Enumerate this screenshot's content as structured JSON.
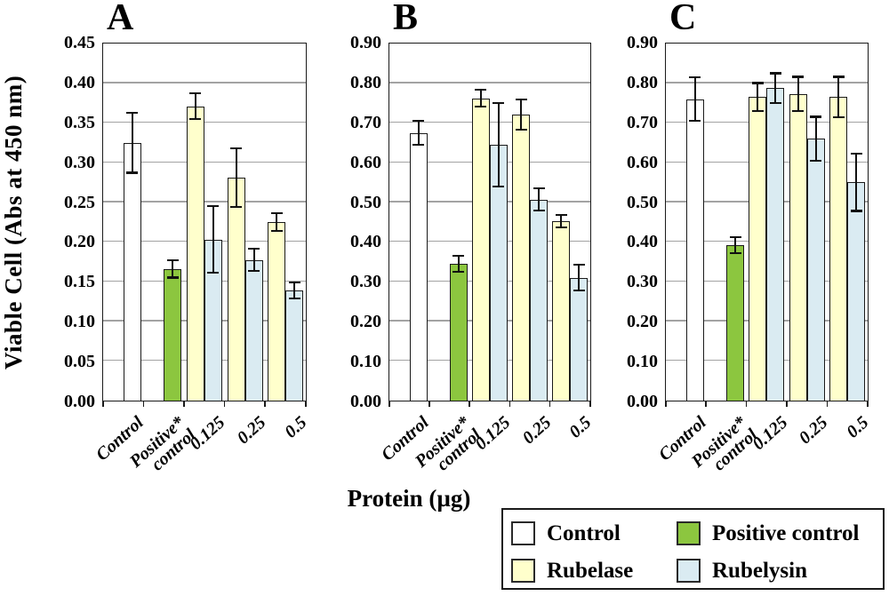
{
  "figure": {
    "ylabel": "Viable Cell (Abs at 450 nm)",
    "xlabel": "Protein (µg)"
  },
  "colors": {
    "control": "#FFFFFF",
    "positive": "#8CC63F",
    "rubelase": "#FFFFCC",
    "rubelysin": "#DAEBF2",
    "bar_border": "#1A1A1A",
    "gridline": "#A3A3A3"
  },
  "legend": {
    "items": [
      {
        "label": "Control",
        "color_key": "control"
      },
      {
        "label": "Positive control",
        "color_key": "positive"
      },
      {
        "label": "Rubelase",
        "color_key": "rubelase"
      },
      {
        "label": "Rubelysin",
        "color_key": "rubelysin"
      }
    ]
  },
  "chart_data": {
    "type": "bar",
    "title": "",
    "xlabel": "Protein (µg)",
    "ylabel": "Viable Cell (Abs at 450 nm)",
    "categories": [
      "Control",
      "Positive*\ncontrol",
      "0.125",
      "0.25",
      "0.5"
    ],
    "series_names": [
      "Control",
      "Positive control",
      "Rubelase",
      "Rubelysin"
    ],
    "grid": "horizontal",
    "legend_position": "bottom-right",
    "panels": [
      {
        "label": "A",
        "ylim": [
          0,
          0.45
        ],
        "ystep": 0.05,
        "bars": [
          {
            "slot": 0,
            "category": "Control",
            "series": "Control",
            "color_key": "control",
            "value": 0.325,
            "err": 0.038
          },
          {
            "slot": 1,
            "category": "Positive control",
            "series": "Positive control",
            "color_key": "positive",
            "value": 0.166,
            "err": 0.011
          },
          {
            "slot": 2,
            "category": "0.125",
            "series": "Rubelase",
            "color_key": "rubelase",
            "value": 0.371,
            "err": 0.016
          },
          {
            "slot": 2,
            "category": "0.125",
            "series": "Rubelysin",
            "color_key": "rubelysin",
            "value": 0.203,
            "err": 0.042
          },
          {
            "slot": 3,
            "category": "0.25",
            "series": "Rubelase",
            "color_key": "rubelase",
            "value": 0.281,
            "err": 0.037
          },
          {
            "slot": 3,
            "category": "0.25",
            "series": "Rubelysin",
            "color_key": "rubelysin",
            "value": 0.177,
            "err": 0.014
          },
          {
            "slot": 4,
            "category": "0.5",
            "series": "Rubelase",
            "color_key": "rubelase",
            "value": 0.225,
            "err": 0.011
          },
          {
            "slot": 4,
            "category": "0.5",
            "series": "Rubelysin",
            "color_key": "rubelysin",
            "value": 0.139,
            "err": 0.01
          }
        ]
      },
      {
        "label": "B",
        "ylim": [
          0,
          0.9
        ],
        "ystep": 0.1,
        "bars": [
          {
            "slot": 0,
            "category": "Control",
            "series": "Control",
            "color_key": "control",
            "value": 0.675,
            "err": 0.03
          },
          {
            "slot": 1,
            "category": "Positive control",
            "series": "Positive control",
            "color_key": "positive",
            "value": 0.345,
            "err": 0.02
          },
          {
            "slot": 2,
            "category": "0.125",
            "series": "Rubelase",
            "color_key": "rubelase",
            "value": 0.762,
            "err": 0.022
          },
          {
            "slot": 2,
            "category": "0.125",
            "series": "Rubelysin",
            "color_key": "rubelysin",
            "value": 0.645,
            "err": 0.105
          },
          {
            "slot": 3,
            "category": "0.25",
            "series": "Rubelase",
            "color_key": "rubelase",
            "value": 0.72,
            "err": 0.038
          },
          {
            "slot": 3,
            "category": "0.25",
            "series": "Rubelysin",
            "color_key": "rubelysin",
            "value": 0.507,
            "err": 0.028
          },
          {
            "slot": 4,
            "category": "0.5",
            "series": "Rubelase",
            "color_key": "rubelase",
            "value": 0.452,
            "err": 0.015
          },
          {
            "slot": 4,
            "category": "0.5",
            "series": "Rubelysin",
            "color_key": "rubelysin",
            "value": 0.31,
            "err": 0.033
          }
        ]
      },
      {
        "label": "C",
        "ylim": [
          0,
          0.9
        ],
        "ystep": 0.1,
        "bars": [
          {
            "slot": 0,
            "category": "Control",
            "series": "Control",
            "color_key": "control",
            "value": 0.76,
            "err": 0.055
          },
          {
            "slot": 1,
            "category": "Positive control",
            "series": "Positive control",
            "color_key": "positive",
            "value": 0.392,
            "err": 0.02
          },
          {
            "slot": 2,
            "category": "0.125",
            "series": "Rubelase",
            "color_key": "rubelase",
            "value": 0.765,
            "err": 0.035
          },
          {
            "slot": 2,
            "category": "0.125",
            "series": "Rubelysin",
            "color_key": "rubelysin",
            "value": 0.787,
            "err": 0.038
          },
          {
            "slot": 3,
            "category": "0.25",
            "series": "Rubelase",
            "color_key": "rubelase",
            "value": 0.773,
            "err": 0.043
          },
          {
            "slot": 3,
            "category": "0.25",
            "series": "Rubelysin",
            "color_key": "rubelysin",
            "value": 0.66,
            "err": 0.055
          },
          {
            "slot": 4,
            "category": "0.5",
            "series": "Rubelase",
            "color_key": "rubelase",
            "value": 0.765,
            "err": 0.051
          },
          {
            "slot": 4,
            "category": "0.5",
            "series": "Rubelysin",
            "color_key": "rubelysin",
            "value": 0.55,
            "err": 0.072
          }
        ]
      }
    ]
  }
}
